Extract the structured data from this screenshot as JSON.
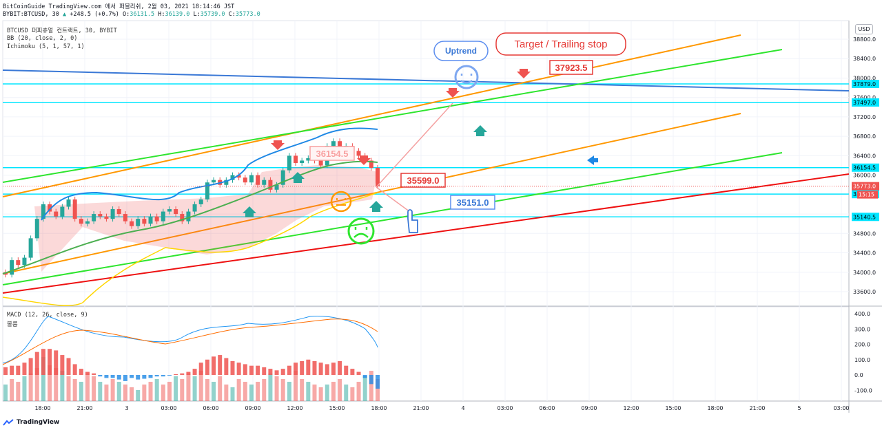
{
  "header": {
    "line1": "BitCoinGuide TradingView.com 에서 퍼블리쉬, 2월 03, 2021 18:14:46 JST",
    "symbol": "BYBIT:BTCUSD, 30",
    "arrow": "▲",
    "change": "+248.5 (+0.7%)",
    "o_label": "O:",
    "o": "36131.5",
    "h_label": "H:",
    "h": "36139.0",
    "l_label": "L:",
    "l": "35739.0",
    "c_label": "C:",
    "c": "35773.0"
  },
  "indicators": {
    "title": "BTCUSD 퍼피츄얼 컨트랙트, 30, BYBIT",
    "bb": "BB (20, close, 2, 0)",
    "ichimoku": "Ichimoku (5, 1, 57, 1)",
    "macd": "MACD (12, 26, close, 9)",
    "macd_sub": "볼륨"
  },
  "currency_button": "USD",
  "logo_text": "TradingView",
  "colors": {
    "up": "#26a69a",
    "down": "#ef5350",
    "orange": "#ff9800",
    "green": "#2ee52e",
    "red": "#ee1111",
    "blue": "#3a78d6",
    "cyan": "#00e5ff",
    "bb": "#1e88e5"
  },
  "chart_data": {
    "type": "candlestick",
    "price_axis": {
      "ticks": [
        33600,
        34000,
        34400,
        34800,
        35200,
        35600,
        36000,
        36400,
        36800,
        37200,
        37600,
        38000,
        38400,
        38800
      ],
      "labels": [
        "33600.0",
        "34000.0",
        "34400.0",
        "34800.0",
        "",
        "",
        "36000.0",
        "36400.0",
        "36800.0",
        "37200.0",
        "37600.0",
        "38000.0",
        "38400.0",
        "38800.0"
      ]
    },
    "time_axis": [
      "18:00",
      "21:00",
      "3",
      "03:00",
      "06:00",
      "09:00",
      "12:00",
      "15:00",
      "18:00",
      "21:00",
      "4",
      "03:00",
      "06:00",
      "09:00",
      "12:00",
      "15:00",
      "18:00",
      "21:00",
      "5",
      "03:00"
    ],
    "macd_axis": {
      "ticks": [
        -100,
        0,
        100,
        200,
        300,
        400
      ],
      "labels": [
        "-100.0",
        "0.0",
        "100.0",
        "200.0",
        "300.0",
        "400.0"
      ]
    },
    "horizontal_levels": [
      {
        "label": "37879.0",
        "value": 37879
      },
      {
        "label": "37497.0",
        "value": 37497
      },
      {
        "label": "36154.5",
        "value": 36154.5
      },
      {
        "label": "35609.5",
        "value": 35609.5
      },
      {
        "label": "35140.5",
        "value": 35140.5
      }
    ],
    "last_price": {
      "label": "35773.0",
      "value": 35773,
      "countdown": "15:15"
    },
    "annotations": {
      "uptrend": "Uptrend",
      "target": "Target / Trailing stop",
      "p1": "37923.5",
      "p2": "36154.5",
      "p3": "35599.0",
      "p4": "35151.0"
    },
    "candles_close": [
      33950,
      34250,
      34150,
      34300,
      34700,
      35100,
      35400,
      35250,
      35150,
      35350,
      35500,
      35100,
      35000,
      35050,
      35200,
      35150,
      35100,
      35300,
      35200,
      35050,
      34950,
      35100,
      35000,
      35150,
      35050,
      35250,
      35300,
      35200,
      35050,
      35250,
      35400,
      35500,
      35850,
      35900,
      35800,
      35900,
      36000,
      35950,
      35850,
      36000,
      35800,
      35900,
      35700,
      35800,
      36100,
      36400,
      36250,
      36300,
      36350,
      36300,
      36200,
      36600,
      36700,
      36550,
      36600,
      36500,
      36400,
      36300,
      36150,
      35773
    ],
    "macd_hist": [
      50,
      60,
      60,
      80,
      110,
      150,
      170,
      170,
      160,
      130,
      110,
      70,
      40,
      20,
      10,
      -10,
      -20,
      -20,
      -30,
      -40,
      -20,
      -30,
      -25,
      -20,
      -10,
      -10,
      -5,
      5,
      10,
      20,
      40,
      80,
      100,
      120,
      130,
      110,
      90,
      80,
      70,
      60,
      60,
      50,
      40,
      30,
      40,
      60,
      80,
      90,
      100,
      90,
      80,
      70,
      80,
      90,
      60,
      40,
      20,
      -20,
      -60,
      -90
    ],
    "volume": [
      60,
      80,
      70,
      90,
      100,
      120,
      160,
      130,
      120,
      110,
      90,
      80,
      70,
      100,
      90,
      70,
      60,
      80,
      70,
      60,
      50,
      40,
      60,
      70,
      80,
      60,
      70,
      90,
      80,
      100,
      90,
      110,
      80,
      70,
      90,
      60,
      50,
      80,
      70,
      60,
      70,
      80,
      100,
      90,
      80,
      70,
      110,
      80,
      70,
      60,
      50,
      60,
      70,
      80,
      60,
      50,
      70,
      90,
      110,
      80
    ]
  }
}
